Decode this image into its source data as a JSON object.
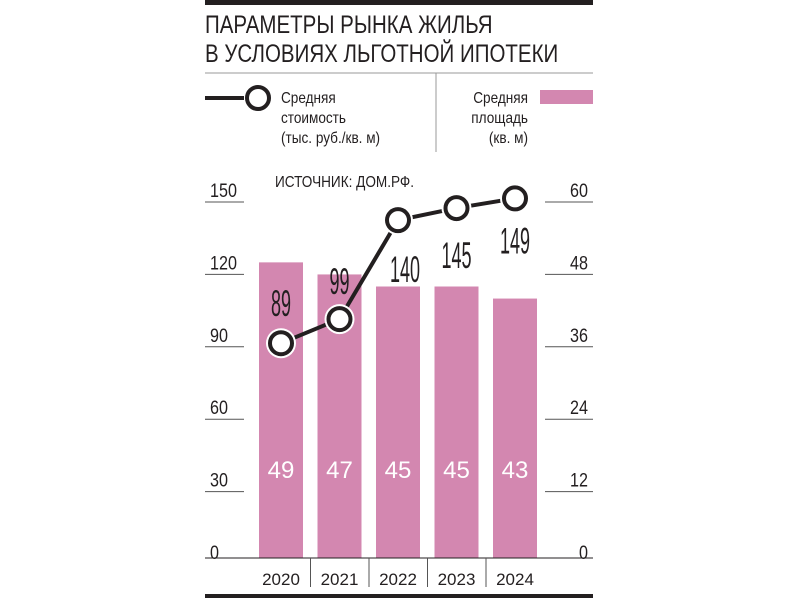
{
  "chart_data": {
    "type": "bar+line",
    "title": [
      "ПАРАМЕТРЫ РЫНКА ЖИЛЬЯ",
      "В УСЛОВИЯХ ЛЬГОТНОЙ ИПОТЕКИ"
    ],
    "source": "ИСТОЧНИК: ДОМ.РФ.",
    "categories": [
      "2020",
      "2021",
      "2022",
      "2023",
      "2024"
    ],
    "line_series": {
      "legend": [
        "Средняя",
        "стоимость",
        "(тыс. руб./кв. м)"
      ],
      "values": [
        89,
        99,
        140,
        145,
        149
      ],
      "axis": "left",
      "color": "#231f20"
    },
    "bar_series": {
      "legend": [
        "Средняя",
        "площадь",
        "(кв. м)"
      ],
      "values": [
        49,
        47,
        45,
        45,
        43
      ],
      "axis": "right",
      "color": "#d387b0"
    },
    "left_axis": {
      "ylim": [
        0,
        150
      ],
      "ticks": [
        "0",
        "30",
        "60",
        "90",
        "120",
        "150"
      ]
    },
    "right_axis": {
      "ylim": [
        0,
        60
      ],
      "ticks": [
        "0",
        "12",
        "24",
        "36",
        "48",
        "60"
      ]
    },
    "legend_placement": "top"
  }
}
